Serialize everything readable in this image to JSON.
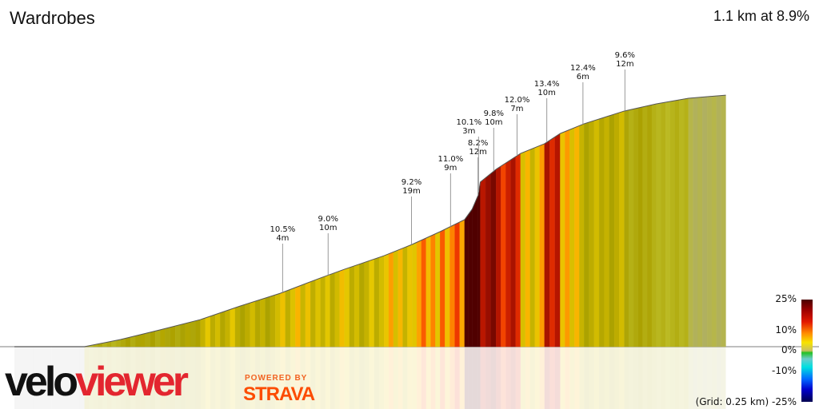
{
  "header": {
    "title": "Wardrobes",
    "summary": "1.1 km at 8.9%"
  },
  "chart_data": {
    "type": "area",
    "title": "Wardrobes",
    "xlabel": "",
    "ylabel": "",
    "x_unit": "km",
    "y_unit": "m",
    "grid": "0.25 km",
    "distance_km": [
      0,
      0.12,
      0.182,
      0.25,
      0.319,
      0.387,
      0.456,
      0.525,
      0.566,
      0.634,
      0.682,
      0.73,
      0.772,
      0.785,
      0.795,
      0.799,
      0.826,
      0.868,
      0.909,
      0.936,
      0.977,
      1.046,
      1.101,
      1.156,
      1.22
    ],
    "elevation_m": [
      0,
      0,
      2.8,
      6.6,
      10.6,
      15.9,
      20.9,
      26.9,
      30.3,
      35.6,
      40,
      45,
      49.7,
      53.8,
      59.1,
      64.4,
      69.4,
      75.6,
      79.4,
      83.4,
      87.2,
      92.2,
      95,
      97.2,
      98.4
    ],
    "annotations": [
      {
        "km": 0.46,
        "gradient": "10.5%",
        "length": "4m"
      },
      {
        "km": 0.538,
        "gradient": "9.0%",
        "length": "10m"
      },
      {
        "km": 0.681,
        "gradient": "9.2%",
        "length": "19m"
      },
      {
        "km": 0.748,
        "gradient": "11.0%",
        "length": "9m"
      },
      {
        "km": 0.795,
        "gradient": "8.2%",
        "length": "12m"
      },
      {
        "km": 0.796,
        "gradient": "10.1%",
        "length": "3m"
      },
      {
        "km": 0.822,
        "gradient": "9.8%",
        "length": "10m"
      },
      {
        "km": 0.862,
        "gradient": "12.0%",
        "length": "7m"
      },
      {
        "km": 0.913,
        "gradient": "13.4%",
        "length": "10m"
      },
      {
        "km": 0.975,
        "gradient": "12.4%",
        "length": "6m"
      },
      {
        "km": 1.047,
        "gradient": "9.6%",
        "length": "12m"
      }
    ],
    "legend": {
      "placement": "bottom-right",
      "ticks": [
        "25%",
        "10%",
        "0%",
        "-10%",
        "-25%"
      ],
      "grid_label": "(Grid: 0.25 km)"
    }
  },
  "branding": {
    "logo": "veloviewer",
    "powered_by": "POWERED BY",
    "strava": "STRAVA"
  }
}
